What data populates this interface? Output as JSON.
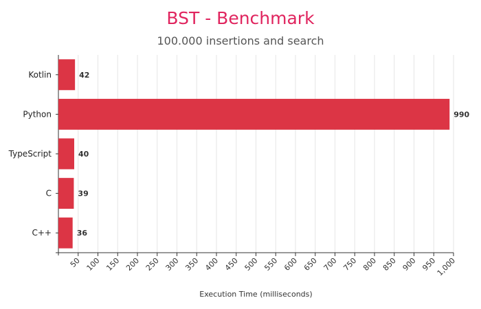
{
  "chart_data": {
    "type": "bar",
    "orientation": "horizontal",
    "title": "BST - Benchmark",
    "subtitle": "100.000 insertions and search",
    "xlabel": "Execution Time (milliseconds)",
    "ylabel": "",
    "categories": [
      "Kotlin",
      "Python",
      "TypeScript",
      "C",
      "C++"
    ],
    "values": [
      42,
      990,
      40,
      39,
      36
    ],
    "data_labels": [
      "42",
      "990",
      "40",
      "39",
      "36"
    ],
    "xlim": [
      0,
      1000
    ],
    "x_ticks": [
      50,
      100,
      150,
      200,
      250,
      300,
      350,
      400,
      450,
      500,
      550,
      600,
      650,
      700,
      750,
      800,
      850,
      900,
      950,
      1000
    ],
    "x_tick_labels": [
      "50",
      "100",
      "150",
      "200",
      "250",
      "300",
      "350",
      "400",
      "450",
      "500",
      "550",
      "600",
      "650",
      "700",
      "750",
      "800",
      "850",
      "900",
      "950",
      "1,000"
    ],
    "grid": "vertical",
    "legend": "none",
    "colors": {
      "bar": "#dc3545",
      "title": "#e0245e",
      "grid": "#e6e6e6",
      "axis": "#333333"
    }
  }
}
